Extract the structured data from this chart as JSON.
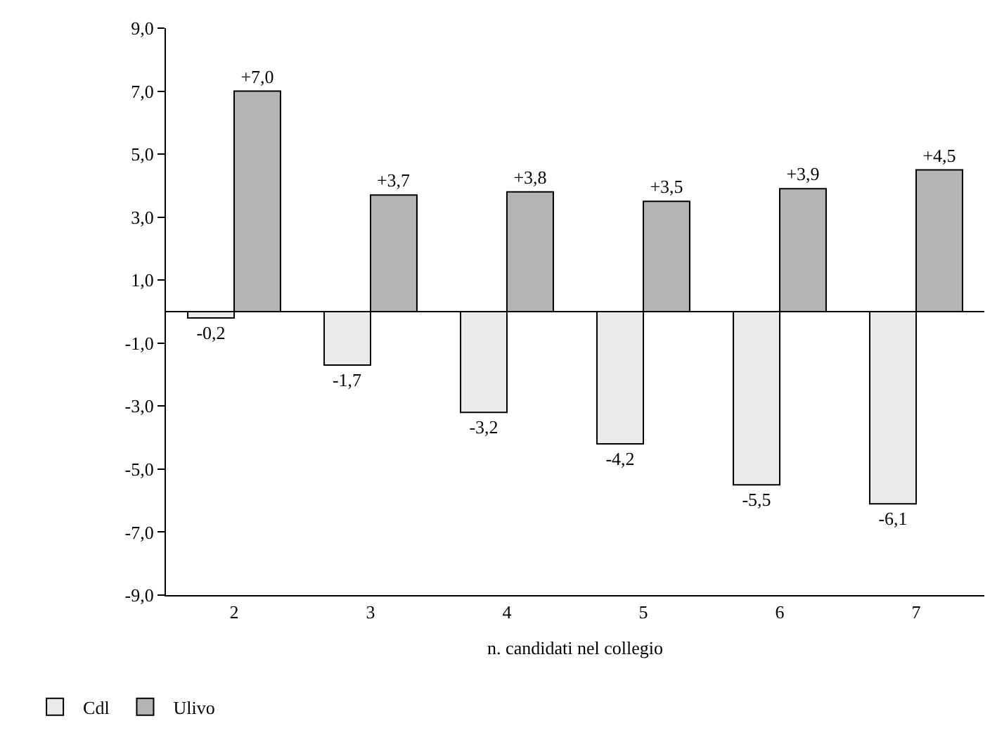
{
  "chart_data": {
    "type": "bar",
    "xlabel": "n. candidati nel collegio",
    "categories": [
      "2",
      "3",
      "4",
      "5",
      "6",
      "7"
    ],
    "series": [
      {
        "name": "Cdl",
        "color": "#ebebeb",
        "values": [
          -0.2,
          -1.7,
          -3.2,
          -4.2,
          -5.5,
          -6.1
        ],
        "value_labels": [
          "-0,2",
          "-1,7",
          "-3,2",
          "-4,2",
          "-5,5",
          "-6,1"
        ]
      },
      {
        "name": "Ulivo",
        "color": "#b4b4b4",
        "values": [
          7.0,
          3.7,
          3.8,
          3.5,
          3.9,
          4.5
        ],
        "value_labels": [
          "+7,0",
          "+3,7",
          "+3,8",
          "+3,5",
          "+3,9",
          "+4,5"
        ]
      }
    ],
    "ylim": [
      -9,
      9
    ],
    "yticks": [
      {
        "value": -9,
        "label": "-9,0"
      },
      {
        "value": -7,
        "label": "-7,0"
      },
      {
        "value": -5,
        "label": "-5,0"
      },
      {
        "value": -3,
        "label": "-3,0"
      },
      {
        "value": -1,
        "label": "-1,0"
      },
      {
        "value": 1,
        "label": "1,0"
      },
      {
        "value": 3,
        "label": "3,0"
      },
      {
        "value": 5,
        "label": "5,0"
      },
      {
        "value": 7,
        "label": "7,0"
      },
      {
        "value": 9,
        "label": "9,0"
      }
    ],
    "grid": false,
    "legend": "bottom left"
  }
}
